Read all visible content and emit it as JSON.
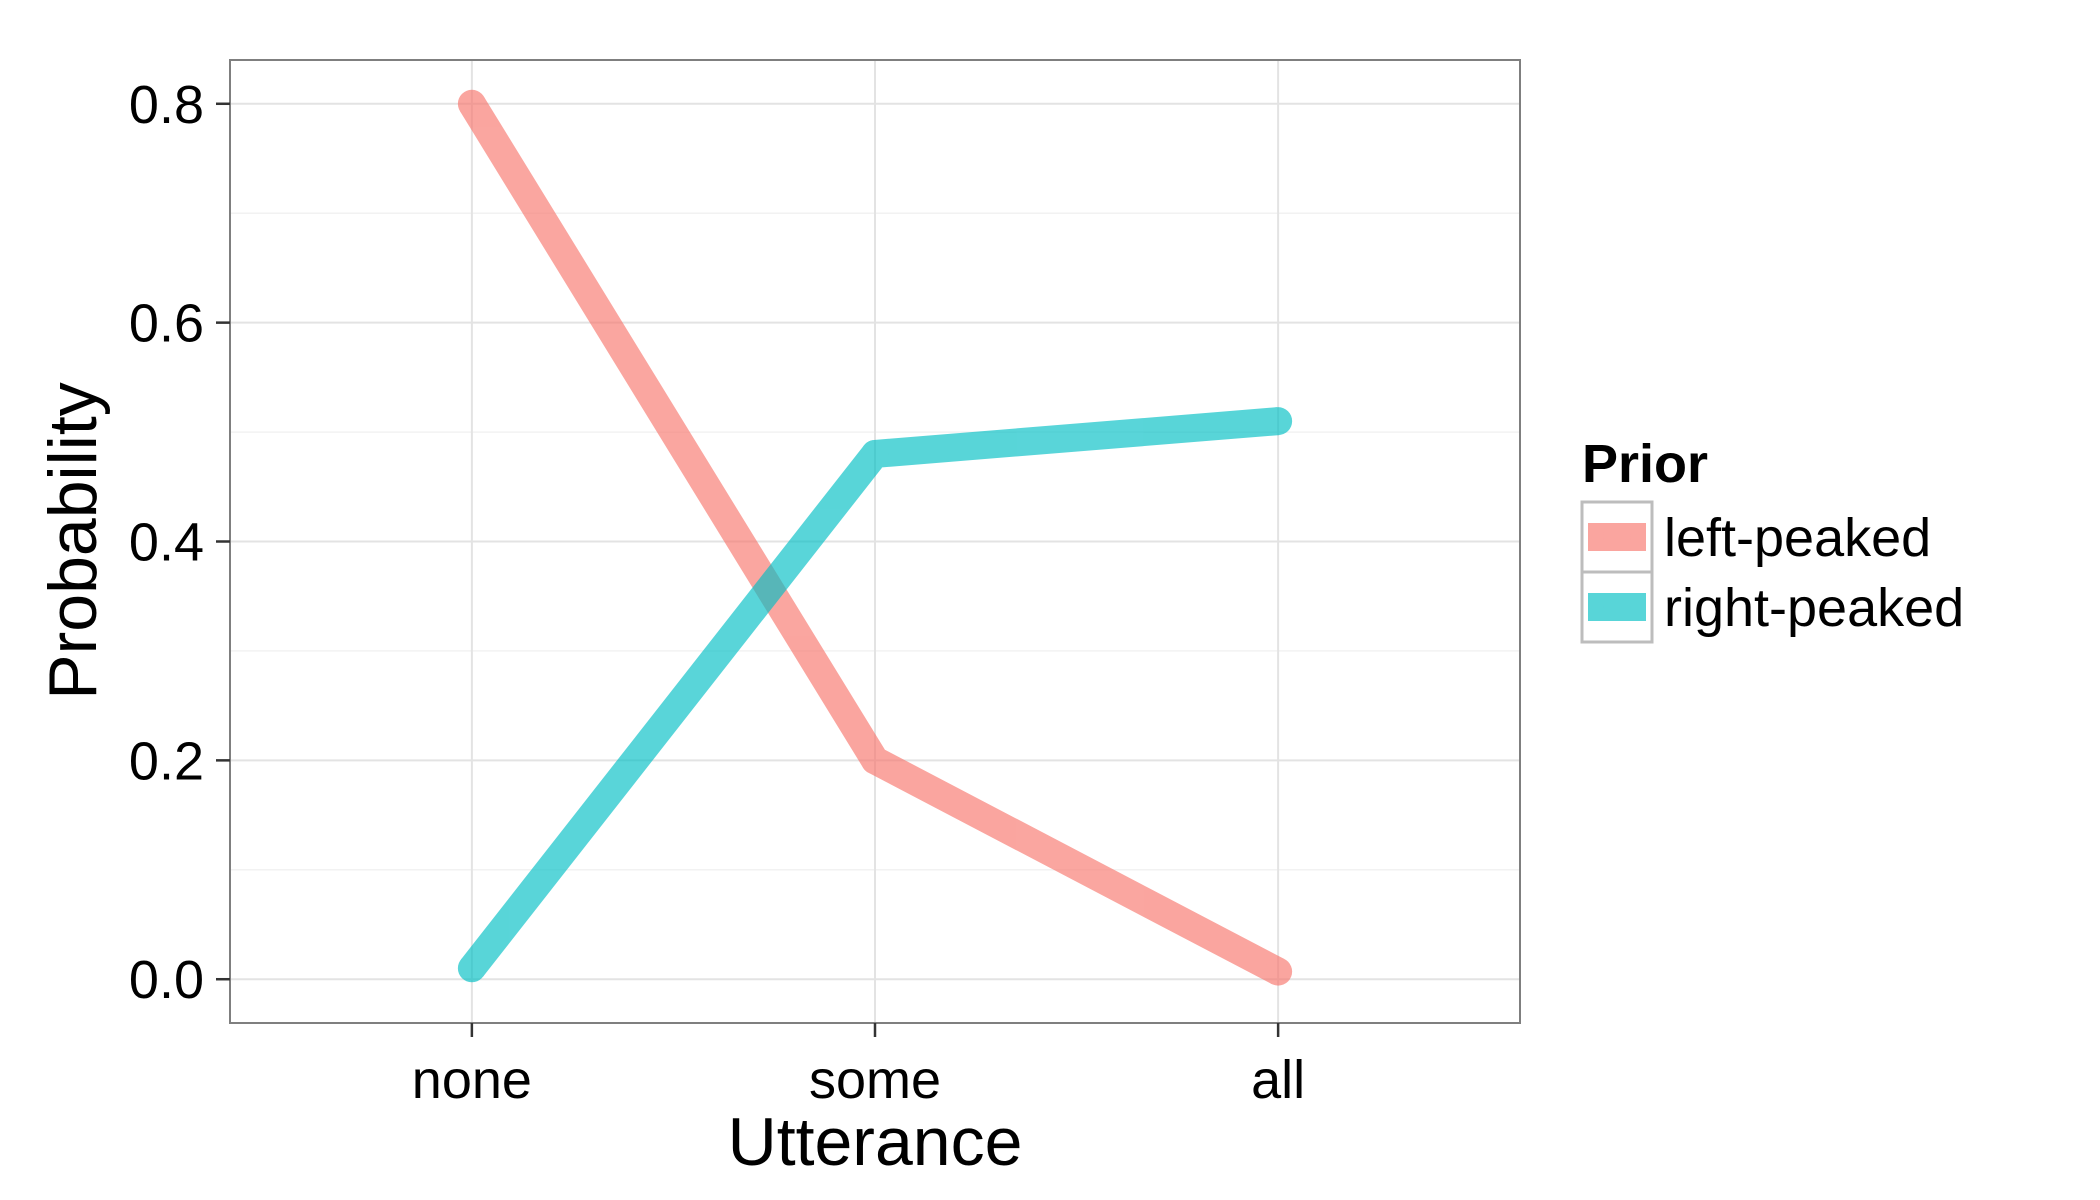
{
  "chart_data": {
    "type": "line",
    "xlabel": "Utterance",
    "ylabel": "Probability",
    "categories": [
      "none",
      "some",
      "all"
    ],
    "ylim": [
      -0.04,
      0.84
    ],
    "yticks": [
      0.0,
      0.2,
      0.4,
      0.6,
      0.8
    ],
    "ytick_labels": [
      "0.0",
      "0.2",
      "0.4",
      "0.6",
      "0.8"
    ],
    "grid": true,
    "legend": {
      "title": "Prior",
      "placement": "right"
    },
    "series": [
      {
        "name": "left-peaked",
        "color": "#F8766D",
        "values": [
          0.8,
          0.2,
          0.007
        ]
      },
      {
        "name": "right-peaked",
        "color": "#00BFC4",
        "values": [
          0.01,
          0.48,
          0.51
        ]
      }
    ]
  }
}
